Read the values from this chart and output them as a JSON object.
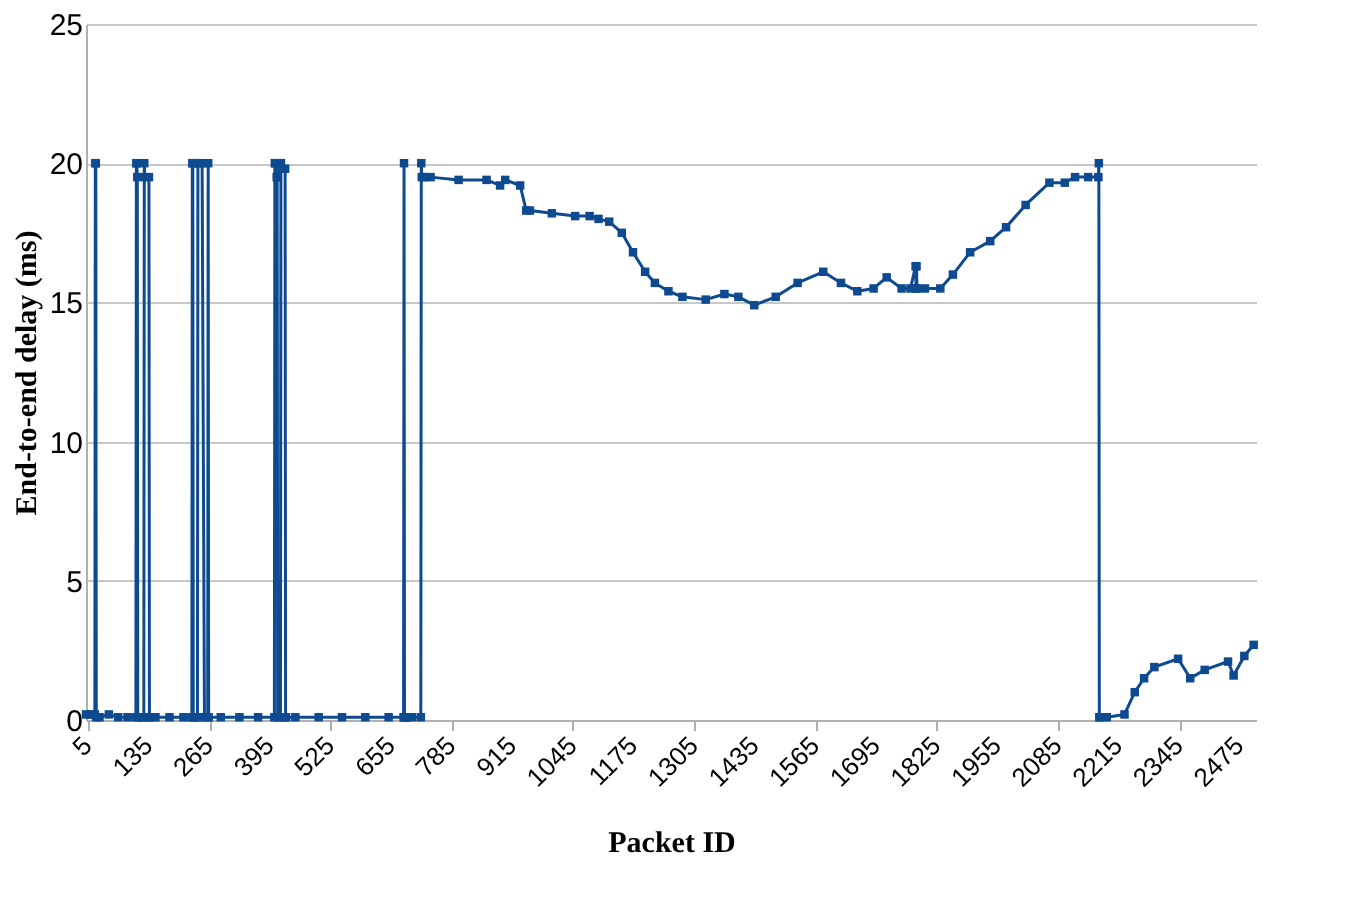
{
  "chart_data": {
    "type": "line",
    "xlabel": "Packet ID",
    "ylabel": "End-to-end delay (ms)",
    "x": [
      1,
      10,
      20,
      21,
      22,
      23,
      30,
      50,
      70,
      90,
      108,
      109,
      110,
      111,
      112,
      120,
      125,
      126,
      127,
      136,
      137,
      138,
      150,
      180,
      210,
      228,
      229,
      230,
      231,
      235,
      240,
      241,
      250,
      255,
      262,
      263,
      264,
      290,
      330,
      370,
      405,
      406,
      407,
      410,
      411,
      412,
      418,
      419,
      420,
      428,
      429,
      430,
      450,
      500,
      550,
      600,
      650,
      682,
      683,
      684,
      686,
      687,
      688,
      700,
      719,
      720,
      721,
      728,
      740,
      800,
      860,
      889,
      900,
      932,
      945,
      953,
      1000,
      1050,
      1081,
      1100,
      1123,
      1150,
      1174,
      1200,
      1221,
      1250,
      1280,
      1330,
      1370,
      1400,
      1434,
      1480,
      1527,
      1582,
      1620,
      1655,
      1690,
      1718,
      1750,
      1769,
      1780,
      1781,
      1782,
      1783,
      1800,
      1833,
      1860,
      1897,
      1940,
      1974,
      2016,
      2067,
      2100,
      2122,
      2150,
      2172,
      2173,
      2174,
      2175,
      2190,
      2228,
      2250,
      2270,
      2292,
      2343,
      2369,
      2400,
      2450,
      2462,
      2485,
      2505
    ],
    "values": [
      0.2,
      0.2,
      0.2,
      20,
      20,
      0.1,
      0.1,
      0.2,
      0.1,
      0.1,
      0.1,
      20,
      20,
      19.5,
      0.1,
      0.1,
      0.1,
      20,
      19.5,
      19.5,
      0.1,
      0.1,
      0.1,
      0.1,
      0.1,
      0.1,
      20,
      20,
      0.1,
      0.1,
      0.1,
      20,
      20,
      0.1,
      0.1,
      20,
      0.1,
      0.1,
      0.1,
      0.1,
      0.1,
      20,
      20,
      19.5,
      19.5,
      0.1,
      0.1,
      20,
      19.8,
      19.8,
      0.1,
      0.1,
      0.1,
      0.1,
      0.1,
      0.1,
      0.1,
      0.1,
      20,
      0.1,
      0.1,
      0.1,
      0.1,
      0.1,
      0.1,
      20,
      19.5,
      19.5,
      19.5,
      19.4,
      19.4,
      19.2,
      19.4,
      19.2,
      18.3,
      18.3,
      18.2,
      18.1,
      18.1,
      18.0,
      17.9,
      17.5,
      16.8,
      16.1,
      15.7,
      15.4,
      15.2,
      15.1,
      15.3,
      15.2,
      14.9,
      15.2,
      15.7,
      16.1,
      15.7,
      15.4,
      15.5,
      15.9,
      15.5,
      15.5,
      16.3,
      15.5,
      16.3,
      15.5,
      15.5,
      15.5,
      16.0,
      16.8,
      17.2,
      17.7,
      18.5,
      19.3,
      19.3,
      19.5,
      19.5,
      19.5,
      20,
      0.1,
      0.1,
      0.1,
      0.2,
      1.0,
      1.5,
      1.9,
      2.2,
      1.5,
      1.8,
      2.1,
      1.6,
      2.3,
      2.7
    ],
    "color": "#0e4a8f",
    "marker": "square",
    "line_style": "solid",
    "xlim": [
      1,
      2510
    ],
    "xticks": [
      5,
      135,
      265,
      395,
      525,
      655,
      785,
      915,
      1045,
      1175,
      1305,
      1435,
      1565,
      1695,
      1825,
      1955,
      2085,
      2215,
      2345,
      2475
    ],
    "ylim": [
      0,
      25
    ],
    "yticks": [
      0,
      5,
      10,
      15,
      20,
      25
    ],
    "grid": "y"
  }
}
